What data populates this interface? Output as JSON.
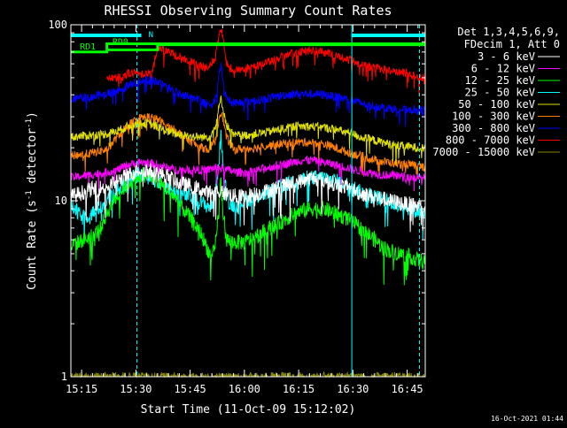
{
  "chart_data": {
    "type": "line",
    "title": "RHESSI Observing Summary Count Rates",
    "xlabel": "Start Time (11-Oct-09 15:12:02)",
    "ylabel_main": "Count Rate (s",
    "ylabel_sup": "-1",
    "ylabel_tail": " detector",
    "ylabel_end": ")",
    "yscale": "log",
    "ylim": [
      1,
      100
    ],
    "xlim_minutes": [
      12.03,
      110
    ],
    "x_ticks": [
      {
        "minute": 15,
        "label": "15:15"
      },
      {
        "minute": 30,
        "label": "15:30"
      },
      {
        "minute": 45,
        "label": "15:45"
      },
      {
        "minute": 60,
        "label": "16:00"
      },
      {
        "minute": 75,
        "label": "16:15"
      },
      {
        "minute": 90,
        "label": "16:30"
      },
      {
        "minute": 105,
        "label": "16:45"
      }
    ],
    "y_ticks": [
      {
        "value": 1,
        "label": "1"
      },
      {
        "value": 10,
        "label": "10"
      },
      {
        "value": 100,
        "label": "100"
      }
    ],
    "legend_header": [
      "Det 1,3,4,5,6,9,",
      "FDecim 1, Att 0"
    ],
    "legend_position": "top-right",
    "series": [
      {
        "name": "3 - 6 keV",
        "color": "#ffffff",
        "x": [
          12.03,
          17,
          22,
          25,
          28,
          31,
          33,
          35,
          38,
          41,
          42,
          44,
          46,
          48,
          50,
          52,
          55,
          58,
          61,
          64,
          67,
          70,
          73,
          76,
          79,
          82,
          85,
          88,
          90,
          92,
          94,
          96,
          98,
          100,
          102,
          104,
          106,
          108,
          110
        ],
        "y": [
          10.5,
          11.5,
          12,
          13,
          14,
          15,
          15,
          14.5,
          14,
          13,
          12.5,
          12.3,
          12,
          11.5,
          11,
          11.5,
          11,
          10.5,
          10.7,
          11,
          11.5,
          12,
          12.5,
          13,
          13.5,
          13,
          12.5,
          12,
          11.5,
          11,
          10.8,
          10.5,
          10.3,
          10,
          9.8,
          9.6,
          9.5,
          9.3,
          9.3
        ]
      },
      {
        "name": "6 - 12 keV",
        "color": "#ff00ff",
        "x": [
          12.03,
          17,
          22,
          25,
          28,
          31,
          33,
          36,
          38,
          41,
          44,
          47,
          50,
          52,
          55,
          58,
          61,
          64,
          67,
          70,
          73,
          76,
          79,
          82,
          85,
          88,
          90,
          92,
          94,
          96,
          98,
          100,
          103,
          106,
          108,
          110
        ],
        "y": [
          13.5,
          14,
          14.5,
          15,
          16,
          16.5,
          16.5,
          16,
          15.5,
          15,
          15,
          15,
          15,
          15.5,
          15,
          14.5,
          14.5,
          15,
          15.5,
          16,
          16.5,
          17,
          17,
          16.5,
          16,
          15.5,
          15,
          14.8,
          14.5,
          14.3,
          14,
          14,
          13.8,
          13.6,
          13.5,
          13.5
        ]
      },
      {
        "name": "12 - 25 keV",
        "color": "#00ff00",
        "x": [
          12.03,
          14,
          17,
          20,
          22,
          24,
          26,
          28,
          30,
          31.5,
          33,
          35,
          37,
          40,
          42,
          44,
          46,
          48,
          49.5,
          51,
          52,
          53,
          53.5,
          54,
          55,
          57,
          60,
          63,
          66,
          70,
          74,
          78,
          82,
          85,
          88,
          90,
          92,
          94,
          96,
          98,
          100,
          103,
          106,
          108,
          110
        ],
        "y": [
          5.5,
          5.8,
          6.2,
          6.8,
          8.5,
          10,
          11.5,
          12.5,
          13.5,
          14,
          14,
          13.5,
          12.5,
          11,
          9.5,
          8.5,
          7.5,
          6.5,
          5.5,
          4.7,
          5.5,
          9,
          13,
          9,
          6,
          5.8,
          5.8,
          6.2,
          6.8,
          7.5,
          8.5,
          9,
          9,
          8.5,
          8,
          7.5,
          7,
          6.5,
          6,
          5.5,
          5.2,
          5,
          4.8,
          4.6,
          4.5
        ]
      },
      {
        "name": "25 - 50 keV",
        "color": "#00ffff",
        "x": [
          12.03,
          15,
          18,
          21,
          23,
          26,
          28,
          30,
          31.5,
          33,
          35,
          37,
          40,
          42,
          45,
          47,
          49,
          51,
          52,
          53,
          53.5,
          54,
          55,
          56,
          58,
          60,
          63,
          66,
          70,
          74,
          78,
          82,
          85,
          88,
          90,
          92,
          94,
          96,
          98,
          100,
          103,
          106,
          108,
          110
        ],
        "y": [
          9.5,
          8,
          8.5,
          9.5,
          10.5,
          12,
          13,
          13.8,
          14,
          13.8,
          13.2,
          12.5,
          11.5,
          11,
          10.5,
          10,
          9.5,
          9.2,
          11,
          17,
          24,
          17,
          11,
          9.5,
          9.5,
          10,
          10.5,
          11,
          12,
          13,
          13.5,
          13.5,
          13,
          12.5,
          12,
          11.2,
          10.8,
          10.5,
          10.2,
          10,
          9.5,
          9,
          8.7,
          8.5
        ]
      },
      {
        "name": "50 - 100 keV",
        "color": "#e0e000",
        "x": [
          12.03,
          17,
          22,
          25,
          28,
          31,
          33,
          36,
          38,
          41,
          44,
          47,
          50,
          52,
          53.5,
          55,
          57,
          60,
          63,
          66,
          70,
          74,
          78,
          82,
          85,
          88,
          90,
          92,
          94,
          96,
          98,
          100,
          103,
          106,
          108,
          110
        ],
        "y": [
          23,
          23.5,
          24,
          25,
          26.5,
          27.5,
          27.5,
          26.5,
          25,
          24,
          23.5,
          23,
          23,
          26,
          38,
          27,
          23.5,
          23.5,
          24,
          24.5,
          25.5,
          26.5,
          26.5,
          26,
          25.5,
          24.5,
          24,
          23,
          22.5,
          22,
          21.5,
          21,
          20.5,
          20.2,
          20,
          20
        ]
      },
      {
        "name": "100 - 300 keV",
        "color": "#ff8000",
        "x": [
          12.03,
          17,
          22,
          24,
          26,
          28,
          31,
          33,
          36,
          38,
          41,
          44,
          47,
          50,
          52,
          53.5,
          55,
          57,
          60,
          63,
          66,
          70,
          74,
          78,
          82,
          85,
          88,
          90,
          92,
          94,
          96,
          98,
          100,
          103,
          106,
          108,
          110
        ],
        "y": [
          18,
          18.5,
          19.5,
          22,
          24.5,
          27,
          29.5,
          30,
          29,
          27,
          25,
          22.5,
          20.5,
          19.5,
          22,
          33,
          23,
          19.5,
          19.8,
          20,
          20.5,
          21,
          21.5,
          21.5,
          21,
          20,
          19,
          18.5,
          18,
          17.5,
          17,
          16.7,
          16.5,
          16.2,
          16,
          15.8,
          15.5
        ]
      },
      {
        "name": "300 - 800 keV",
        "color": "#0000ff",
        "x": [
          12.03,
          15,
          18,
          21,
          23,
          26,
          28,
          30,
          32,
          35,
          37,
          40,
          42,
          45,
          47,
          49,
          51,
          52,
          53,
          53.5,
          54,
          55,
          57,
          60,
          63,
          66,
          70,
          74,
          78,
          82,
          85,
          88,
          90,
          92,
          94,
          96,
          98,
          100,
          103,
          106,
          108,
          110
        ],
        "y": [
          38,
          38.5,
          39,
          40,
          41,
          43,
          45,
          47,
          49,
          48,
          46,
          43,
          40.5,
          39,
          37.5,
          36,
          35,
          38,
          50,
          60,
          48,
          38,
          36,
          36.5,
          37,
          38,
          39.5,
          40.5,
          40.5,
          40,
          39,
          38,
          37,
          36,
          35,
          34.5,
          34,
          33.5,
          33,
          33,
          33,
          32.5
        ]
      },
      {
        "name": "800 - 7000 keV",
        "color": "#ff0000",
        "x": [
          22,
          24,
          26,
          28,
          30,
          32,
          33,
          34.5,
          36,
          38,
          41,
          44,
          47,
          50,
          52,
          53,
          53.5,
          54,
          55,
          57,
          60,
          63,
          66,
          70,
          74,
          76,
          79,
          82,
          85,
          88,
          90,
          92,
          94,
          96,
          98,
          100,
          103,
          106,
          108,
          110
        ],
        "y": [
          49,
          50,
          51,
          53,
          53,
          53,
          53,
          53,
          75,
          72,
          67,
          63,
          59,
          56,
          65,
          85,
          95,
          85,
          60,
          55,
          56,
          58,
          61,
          65,
          69,
          71,
          71,
          70,
          67,
          64,
          62,
          60,
          58,
          57,
          56,
          55,
          54,
          52,
          51,
          50
        ]
      },
      {
        "name": "7000 - 15000 keV",
        "color": "#888800",
        "x": [
          12.03,
          110
        ],
        "y": [
          1,
          1
        ]
      }
    ],
    "attenuator_flag": {
      "label": "RD1",
      "color": "#00ff00",
      "x": [
        12.03,
        22,
        22,
        110
      ],
      "y": [
        70,
        70,
        78,
        78
      ]
    },
    "decimation_flag": {
      "label": "RD0",
      "color": "#00ff00",
      "x": [
        22,
        36,
        36,
        110
      ],
      "y": [
        72,
        72,
        77,
        77
      ]
    },
    "night_flag": {
      "label": "N",
      "color": "#00ffff",
      "segments": [
        [
          12.03,
          31.5
        ],
        [
          89.7,
          110
        ]
      ],
      "y": 87
    },
    "night_boundaries_minutes": [
      12.03,
      89.7
    ],
    "day_boundaries_minutes": [
      30.3,
      108.4
    ]
  },
  "footer_date": "16-Oct-2021 01:44"
}
